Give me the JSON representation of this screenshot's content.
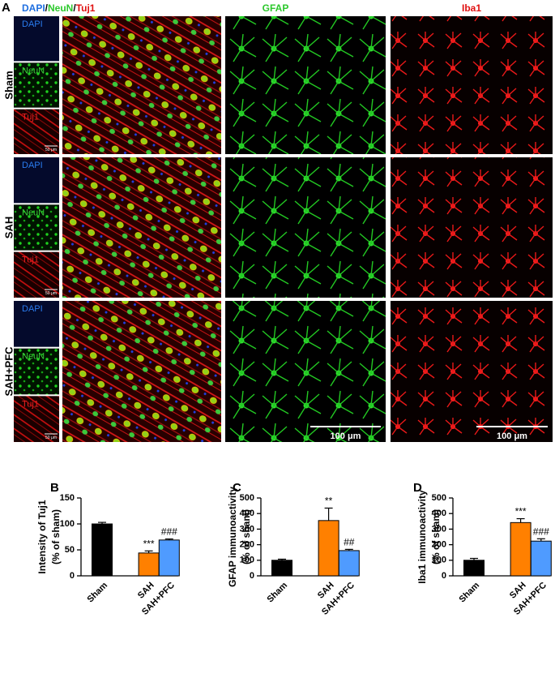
{
  "panel_a": {
    "label": "A",
    "merge_title": [
      "DAPI",
      "/",
      "NeuN",
      "/",
      "Tuj1"
    ],
    "gfap_title": "GFAP",
    "iba1_title": "Iba1",
    "rows": [
      {
        "name": "Sham",
        "channels": [
          "DAPI",
          "NeuN",
          "Tuj1"
        ],
        "small_scale": "50 μm"
      },
      {
        "name": "SAH",
        "channels": [
          "DAPI",
          "NeuN",
          "Tuj1"
        ],
        "small_scale": "50 μm"
      },
      {
        "name": "SAH+PFC",
        "channels": [
          "DAPI",
          "NeuN",
          "Tuj1"
        ],
        "small_scale": "50 μm"
      }
    ],
    "scale_bars": [
      "100 μm",
      "100 μm"
    ]
  },
  "chart_data": [
    {
      "type": "bar",
      "panel_label": "B",
      "ylabel": [
        "Intensity of Tuj1",
        "(% of sham)"
      ],
      "categories": [
        "Sham",
        "SAH",
        "SAH+PFC"
      ],
      "values": [
        100,
        44,
        69
      ],
      "errors": [
        3,
        4,
        2
      ],
      "colors": [
        "#000000",
        "#ff8000",
        "#4f9bff"
      ],
      "annotations": [
        null,
        "***",
        "###"
      ],
      "ylim": [
        0,
        150
      ],
      "yticks": [
        0,
        50,
        100,
        150
      ]
    },
    {
      "type": "bar",
      "panel_label": "C",
      "ylabel": [
        "GFAP immunoactivity",
        "(% of sham)"
      ],
      "categories": [
        "Sham",
        "SAH",
        "SAH+PFC"
      ],
      "values": [
        100,
        355,
        162
      ],
      "errors": [
        7,
        80,
        8
      ],
      "colors": [
        "#000000",
        "#ff8000",
        "#4f9bff"
      ],
      "annotations": [
        null,
        "**",
        "##"
      ],
      "ylim": [
        0,
        500
      ],
      "yticks": [
        0,
        100,
        200,
        300,
        400,
        500
      ]
    },
    {
      "type": "bar",
      "panel_label": "D",
      "ylabel": [
        "Iba1 immunoactivity",
        "(% of sham)"
      ],
      "categories": [
        "Sham",
        "SAH",
        "SAH+PFC"
      ],
      "values": [
        100,
        342,
        223
      ],
      "errors": [
        12,
        25,
        15
      ],
      "colors": [
        "#000000",
        "#ff8000",
        "#4f9bff"
      ],
      "annotations": [
        null,
        "***",
        "###"
      ],
      "ylim": [
        0,
        500
      ],
      "yticks": [
        0,
        100,
        200,
        300,
        400,
        500
      ]
    }
  ]
}
